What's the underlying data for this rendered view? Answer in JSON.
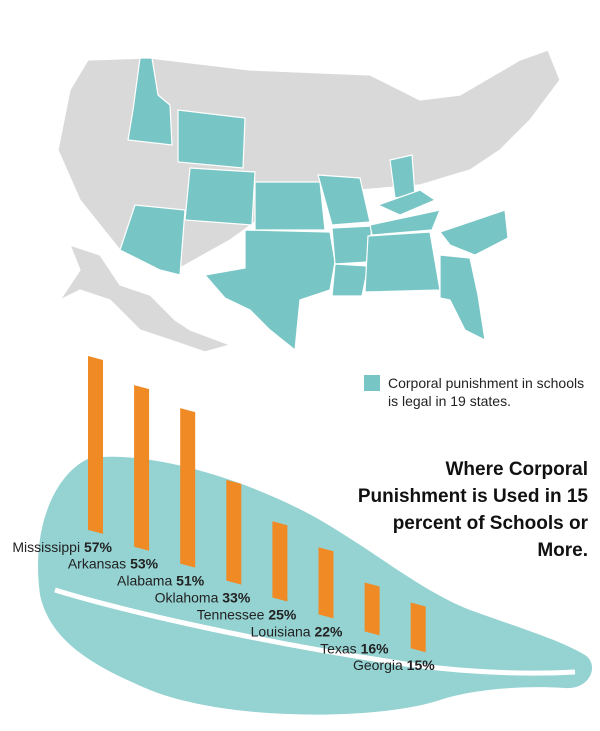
{
  "chart_data": {
    "type": "bar",
    "title": "Where Corporal Punishment is Used in 15 percent of Schools or More.",
    "annotation": "Corporal punishment in schools is legal in 19 states.",
    "categories": [
      "Mississippi",
      "Arkansas",
      "Alabama",
      "Oklahoma",
      "Tennessee",
      "Louisiana",
      "Texas",
      "Georgia"
    ],
    "values": [
      57,
      53,
      51,
      33,
      25,
      22,
      16,
      15
    ],
    "value_labels": [
      "57%",
      "53%",
      "51%",
      "33%",
      "25%",
      "22%",
      "16%",
      "15%"
    ],
    "color": "#f08a24",
    "legal_color": "#78c5c5"
  }
}
